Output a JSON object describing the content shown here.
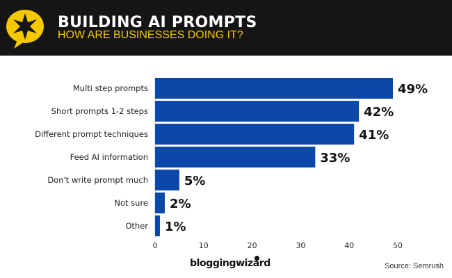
{
  "header": {
    "title": "BUILDING AI PROMPTS",
    "subtitle": "HOW ARE BUSINESSES DOING IT?",
    "logo_icon": "star-speech-bubble-icon",
    "accent_color": "#f5c800"
  },
  "chart_data": {
    "type": "bar",
    "orientation": "horizontal",
    "categories": [
      "Multi step prompts",
      "Short prompts 1-2 steps",
      "Different prompt techniques",
      "Feed AI information",
      "Don't write prompt much",
      "Not sure",
      "Other"
    ],
    "values": [
      49,
      42,
      41,
      33,
      5,
      2,
      1
    ],
    "data_labels": [
      "49%",
      "42%",
      "41%",
      "33%",
      "5%",
      "2%",
      "1%"
    ],
    "xlim": [
      0,
      50
    ],
    "xticks": [
      "0",
      "10",
      "20",
      "30",
      "40",
      "50"
    ],
    "grid": false,
    "bar_color": "#0b48a8"
  },
  "footer": {
    "brand": "bloggingwizard",
    "source": "Source: Semrush"
  }
}
